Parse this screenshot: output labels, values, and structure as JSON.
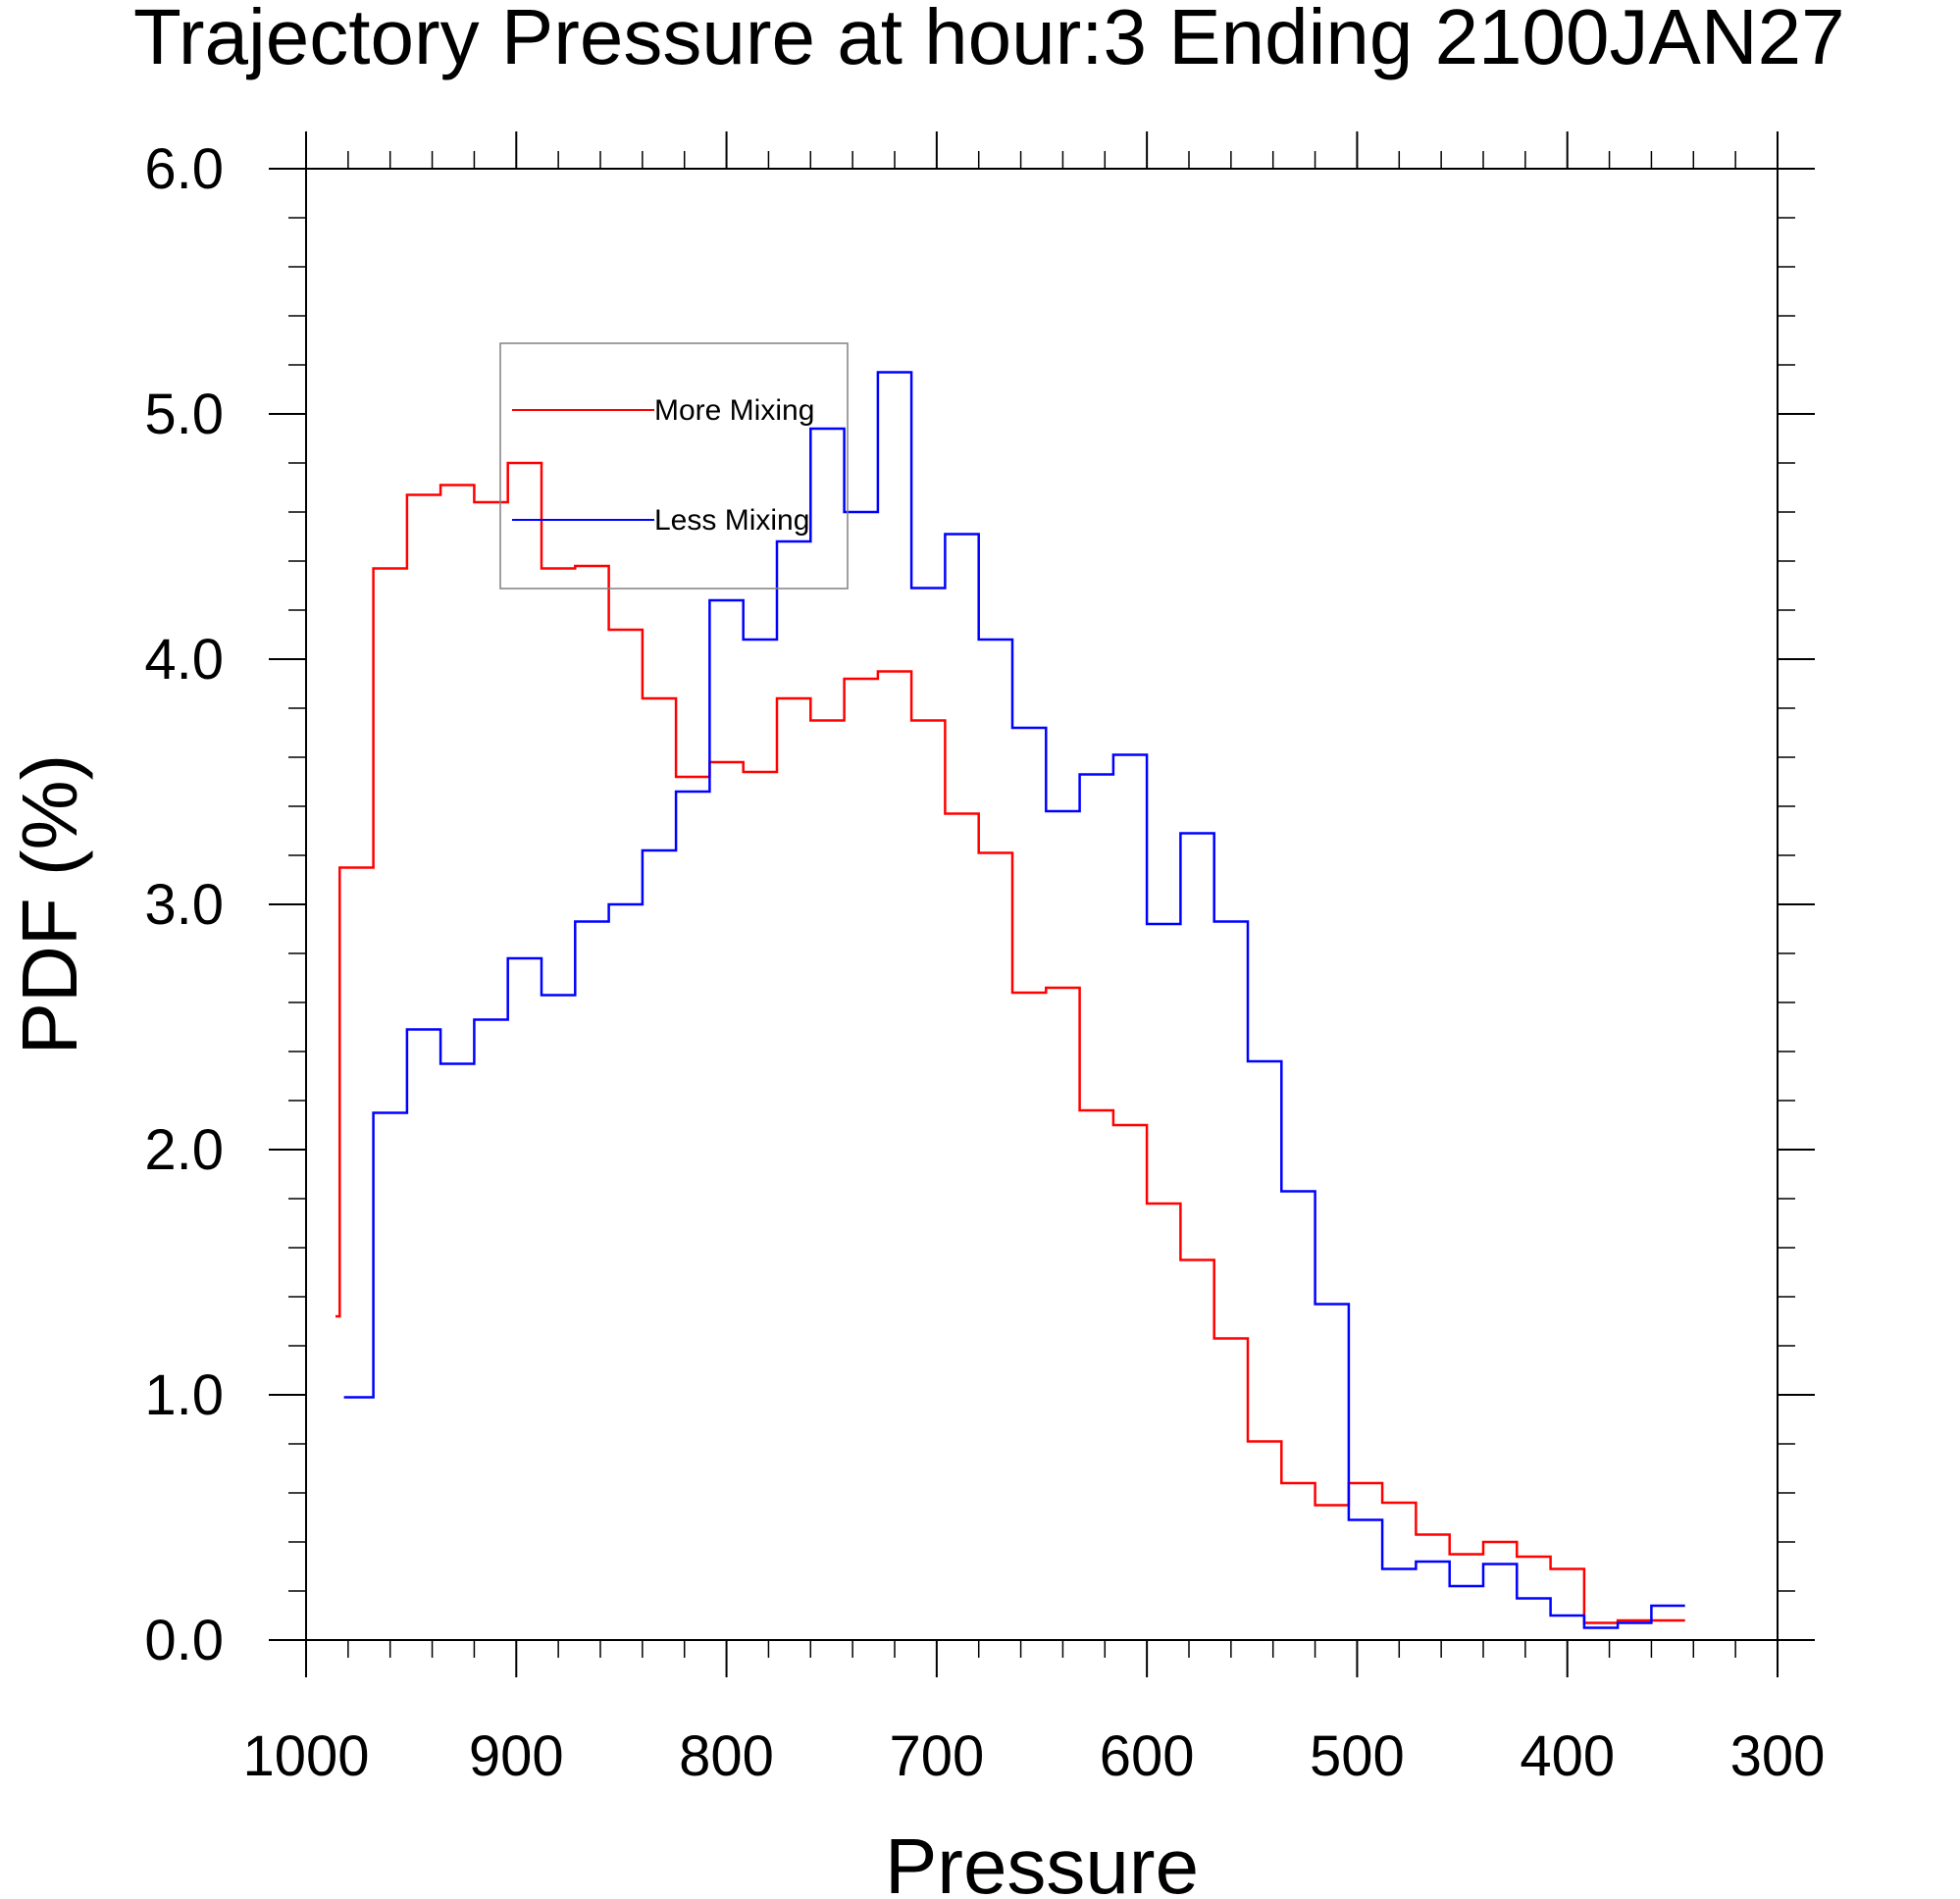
{
  "chart_data": {
    "type": "line",
    "step": true,
    "title": "Trajectory Pressure at hour:3 Ending 2100JAN27",
    "xlabel": "Pressure",
    "ylabel": "PDF (%)",
    "xlim": [
      1000,
      300
    ],
    "ylim": [
      0,
      6
    ],
    "x_reversed": true,
    "xticks": [
      1000,
      900,
      800,
      700,
      600,
      500,
      400,
      300
    ],
    "xtick_labels": [
      "1000",
      "900",
      "800",
      "700",
      "600",
      "500",
      "400",
      "300"
    ],
    "yticks": [
      0,
      1,
      2,
      3,
      4,
      5,
      6
    ],
    "ytick_labels": [
      "0.0",
      "1.0",
      "2.0",
      "3.0",
      "4.0",
      "5.0",
      "6.0"
    ],
    "grid": false,
    "legend_position": "upper-left",
    "series": [
      {
        "name": "More Mixing",
        "color": "#ff0000",
        "x": [
          986,
          984,
          968,
          952,
          936,
          920,
          904,
          888,
          872,
          856,
          840,
          824,
          808,
          792,
          776,
          760,
          744,
          728,
          712,
          696,
          680,
          664,
          648,
          632,
          616,
          600,
          584,
          568,
          552,
          536,
          520,
          504,
          488,
          472,
          456,
          440,
          424,
          408,
          392,
          376,
          360
        ],
        "y": [
          1.32,
          3.15,
          4.37,
          4.67,
          4.71,
          4.64,
          4.8,
          4.37,
          4.38,
          4.12,
          3.84,
          3.52,
          3.58,
          3.54,
          3.84,
          3.75,
          3.92,
          3.95,
          3.75,
          3.37,
          3.21,
          2.64,
          2.66,
          2.16,
          2.1,
          1.78,
          1.55,
          1.23,
          0.81,
          0.64,
          0.55,
          0.64,
          0.56,
          0.43,
          0.35,
          0.4,
          0.34,
          0.29,
          0.07,
          0.08,
          0.08
        ]
      },
      {
        "name": "Less Mixing",
        "color": "#0000ff",
        "x": [
          982,
          968,
          952,
          936,
          920,
          904,
          888,
          872,
          856,
          840,
          824,
          808,
          792,
          776,
          760,
          744,
          728,
          712,
          696,
          680,
          664,
          648,
          632,
          616,
          600,
          584,
          568,
          552,
          536,
          520,
          504,
          488,
          472,
          456,
          440,
          424,
          408,
          392,
          376,
          360
        ],
        "y": [
          0.99,
          2.15,
          2.49,
          2.35,
          2.53,
          2.78,
          2.63,
          2.93,
          3.0,
          3.22,
          3.46,
          4.24,
          4.08,
          4.48,
          4.94,
          4.6,
          5.17,
          4.29,
          4.51,
          4.08,
          3.72,
          3.38,
          3.53,
          3.61,
          2.92,
          3.29,
          2.93,
          2.36,
          1.83,
          1.37,
          0.49,
          0.29,
          0.32,
          0.22,
          0.31,
          0.17,
          0.1,
          0.05,
          0.07,
          0.14
        ]
      }
    ]
  }
}
